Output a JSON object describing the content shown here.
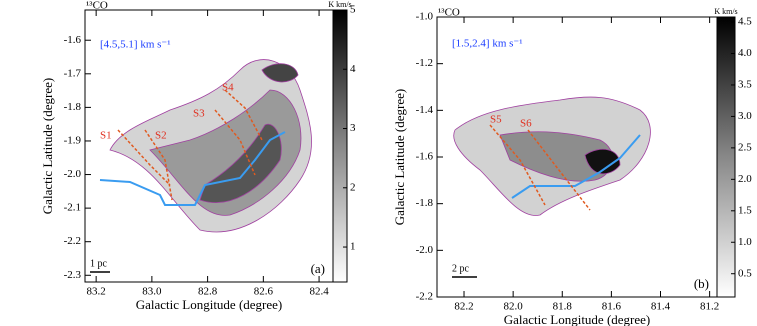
{
  "chart_data": [
    {
      "type": "map",
      "title": "¹³CO",
      "annotation": "[4.5,5.1] km s⁻¹",
      "panel_label": "(a)",
      "scale_bar": "1 pc",
      "xlabel": "Galactic Longitude (degree)",
      "ylabel": "Galactic Latitude (degree)",
      "xlim": [
        83.24,
        82.35
      ],
      "xticks": [
        83.2,
        {
          "value": 83.0,
          "label": "83.0"
        },
        82.8,
        82.6,
        82.4
      ],
      "ylim": [
        -2.32,
        -1.51
      ],
      "yticks": [
        -2.3,
        -2.2,
        -2.1,
        {
          "value": -2.0,
          "label": "-2.0"
        },
        -1.9,
        -1.8,
        -1.7,
        -1.6
      ],
      "colorbar_label": "K km/s",
      "clim": [
        0.41,
        5
      ],
      "cticks": [
        1,
        2,
        3,
        4,
        5
      ],
      "regions": [
        "S1",
        "S2",
        "S3",
        "S4"
      ]
    },
    {
      "type": "map",
      "title": "¹³CO",
      "annotation": "[1.5,2.4] km s⁻¹",
      "panel_label": "(b)",
      "scale_bar": "2 pc",
      "xlabel": "Galactic Longitude (degree)",
      "ylabel": "Galactic Latitude (degree)",
      "xlim": [
        82.31,
        81.17
      ],
      "xticks": [
        82.2,
        {
          "value": 82.0,
          "label": "82.0"
        },
        81.8,
        81.6,
        81.4,
        81.2
      ],
      "ylim": [
        -2.2,
        -1.0
      ],
      "yticks": [
        -2.2,
        {
          "value": -2.0,
          "label": "-2.0"
        },
        -1.8,
        -1.6,
        -1.4,
        -1.2,
        {
          "value": -1.0,
          "label": "-1.0"
        }
      ],
      "colorbar_label": "K km/s",
      "clim": [
        0.13,
        4.58
      ],
      "cticks": [
        {
          "value": 0.5,
          "label": "0.5"
        },
        {
          "value": 1.0,
          "label": "1.0"
        },
        {
          "value": 1.5,
          "label": "1.5"
        },
        {
          "value": 2.0,
          "label": "2.0"
        },
        {
          "value": 2.5,
          "label": "2.5"
        },
        {
          "value": 3.0,
          "label": "3.0"
        },
        {
          "value": 3.5,
          "label": "3.5"
        },
        {
          "value": 4.0,
          "label": "4.0"
        },
        {
          "value": 4.5,
          "label": "4.5"
        }
      ],
      "regions": [
        "S5",
        "S6"
      ]
    }
  ]
}
